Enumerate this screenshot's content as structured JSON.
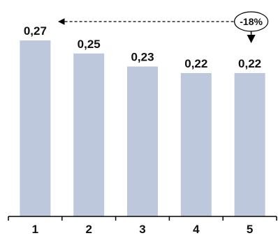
{
  "chart_data": {
    "type": "bar",
    "categories": [
      "1",
      "2",
      "3",
      "4",
      "5"
    ],
    "values": [
      0.27,
      0.25,
      0.23,
      0.22,
      0.22
    ],
    "value_labels": [
      "0,27",
      "0,25",
      "0,23",
      "0,22",
      "0,22"
    ],
    "title": "",
    "xlabel": "",
    "ylabel": "",
    "ylim": [
      0,
      0.3
    ],
    "grid": false,
    "annotation": {
      "text": "-18%",
      "from_category": "5",
      "to_category": "1",
      "style": "dashed-arrow"
    }
  },
  "colors": {
    "bar": "#bdc8dc",
    "axis": "#000000",
    "text": "#111111"
  }
}
